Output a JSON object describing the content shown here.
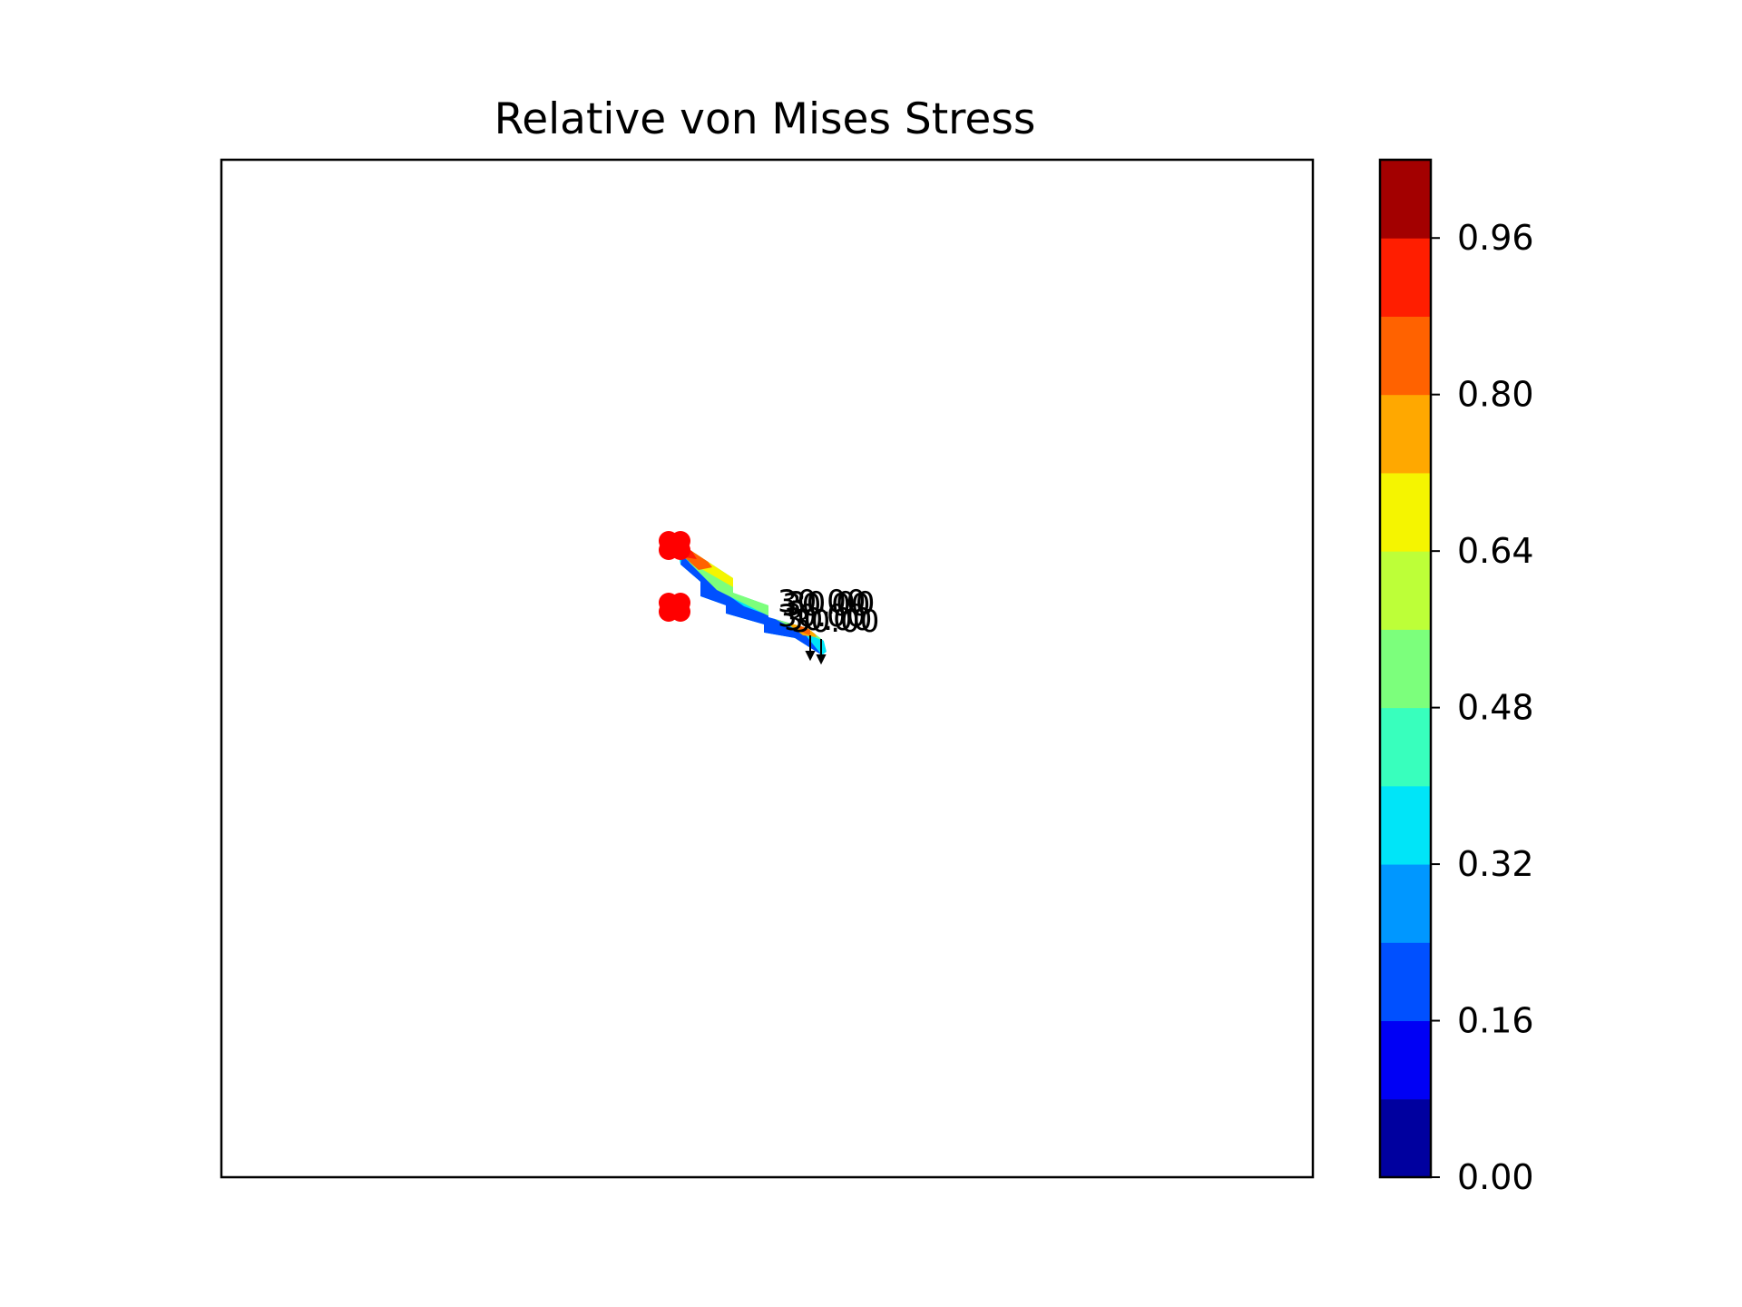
{
  "chart_data": {
    "type": "heatmap",
    "title": "Relative von Mises Stress",
    "xlabel": "",
    "ylabel": "",
    "axes_ticks_visible": false,
    "grid": false,
    "colormap": "jet",
    "colorbar": {
      "range": [
        0.0,
        1.04
      ],
      "levels": [
        0.0,
        0.08,
        0.16,
        0.24,
        0.32,
        0.4,
        0.48,
        0.56,
        0.64,
        0.72,
        0.8,
        0.88,
        0.96,
        1.04
      ],
      "level_colors": [
        "#00009f",
        "#0000f5",
        "#0050ff",
        "#0097ff",
        "#00e5f8",
        "#38ffbd",
        "#7cff7c",
        "#bdff38",
        "#f5f500",
        "#ffa800",
        "#ff6200",
        "#ff1e00",
        "#a30000"
      ],
      "tick_labels": [
        "0.00",
        "0.16",
        "0.32",
        "0.48",
        "0.64",
        "0.80",
        "0.96"
      ]
    },
    "supports": {
      "color": "#ff0000",
      "count": 8
    },
    "load_labels": [
      "30.00",
      "30.00",
      "30.00",
      "30.00",
      "30.00",
      "30.00"
    ],
    "load_arrows": 2,
    "structure": {
      "description": "thin diagonal beam fixed at left with red support markers, loaded at lower-right tip",
      "stress_max_region": "fixed end and loaded tip",
      "stress_min_region": "lower edge of beam"
    }
  }
}
